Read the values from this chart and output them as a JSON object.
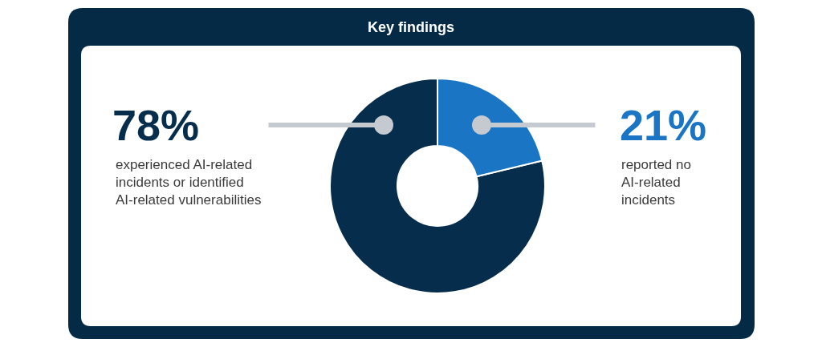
{
  "chart_data": {
    "type": "donut",
    "title": "Key findings",
    "categories": [
      "experienced AI-related incidents or identified AI-related vulnerabilities",
      "reported no AI-related incidents"
    ],
    "values": [
      78,
      21
    ],
    "colors": [
      "#062d4b",
      "#1a75c4"
    ],
    "value_labels": [
      "78%",
      "21%"
    ]
  }
}
